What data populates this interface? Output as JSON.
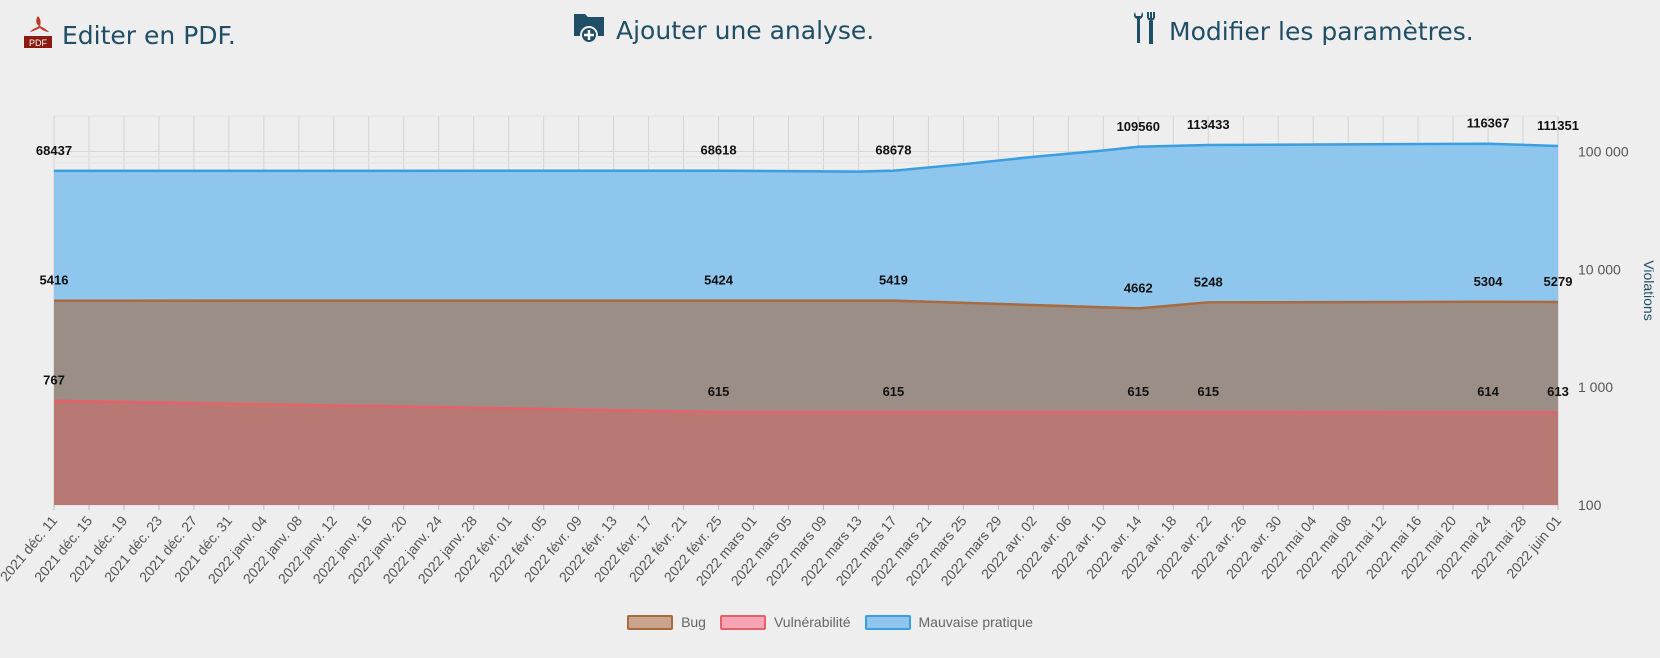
{
  "toolbar": {
    "pdf": {
      "label": "Editer en PDF.",
      "icon": "pdf-icon"
    },
    "add": {
      "label": "Ajouter une analyse.",
      "icon": "folder-add-icon"
    },
    "settings": {
      "label": "Modifier les paramètres.",
      "icon": "tools-icon"
    }
  },
  "chart_data": {
    "type": "area",
    "ylabel": "Violations",
    "yscale": "log",
    "ylim": [
      100,
      200000
    ],
    "y_ticks": [
      "100",
      "1 000",
      "10 000",
      "100 000"
    ],
    "x": [
      "2021 déc. 11",
      "2021 déc. 15",
      "2021 déc. 19",
      "2021 déc. 23",
      "2021 déc. 27",
      "2021 déc. 31",
      "2022 janv. 04",
      "2022 janv. 08",
      "2022 janv. 12",
      "2022 janv. 16",
      "2022 janv. 20",
      "2022 janv. 24",
      "2022 janv. 28",
      "2022 févr. 01",
      "2022 févr. 05",
      "2022 févr. 09",
      "2022 févr. 13",
      "2022 févr. 17",
      "2022 févr. 21",
      "2022 févr. 25",
      "2022 mars 01",
      "2022 mars 05",
      "2022 mars 09",
      "2022 mars 13",
      "2022 mars 17",
      "2022 mars 21",
      "2022 mars 25",
      "2022 mars 29",
      "2022 avr. 02",
      "2022 avr. 06",
      "2022 avr. 10",
      "2022 avr. 14",
      "2022 avr. 18",
      "2022 avr. 22",
      "2022 avr. 26",
      "2022 avr. 30",
      "2022 mai 04",
      "2022 mai 08",
      "2022 mai 12",
      "2022 mai 16",
      "2022 mai 20",
      "2022 mai 24",
      "2022 mai 28",
      "2022 juin 01"
    ],
    "series": [
      {
        "name": "Bug",
        "color": "#a86a3e",
        "fill": "#9a8e86",
        "points": [
          [
            "2021 déc. 11",
            5416
          ],
          [
            "2022 févr. 25",
            5424
          ],
          [
            "2022 mars 05",
            5430
          ],
          [
            "2022 mars 17",
            5419
          ],
          [
            "2022 avr. 14",
            4662
          ],
          [
            "2022 avr. 22",
            5248
          ],
          [
            "2022 mai 24",
            5304
          ],
          [
            "2022 juin 01",
            5279
          ]
        ],
        "labels": [
          [
            "2021 déc. 11",
            5416
          ],
          [
            "2022 févr. 25",
            5424
          ],
          [
            "2022 mars 17",
            5419
          ],
          [
            "2022 avr. 14",
            4662
          ],
          [
            "2022 avr. 22",
            5248
          ],
          [
            "2022 mai 24",
            5304
          ],
          [
            "2022 juin 01",
            5279
          ]
        ]
      },
      {
        "name": "Vulnérabilité",
        "color": "#e8606a",
        "fill": "#b87873",
        "points": [
          [
            "2021 déc. 11",
            767
          ],
          [
            "2022 janv. 04",
            715
          ],
          [
            "2022 févr. 01",
            660
          ],
          [
            "2022 févr. 25",
            615
          ],
          [
            "2022 mars 17",
            615
          ],
          [
            "2022 avr. 14",
            615
          ],
          [
            "2022 avr. 22",
            615
          ],
          [
            "2022 mai 24",
            614
          ],
          [
            "2022 juin 01",
            613
          ]
        ],
        "labels": [
          [
            "2021 déc. 11",
            767
          ],
          [
            "2022 févr. 25",
            615
          ],
          [
            "2022 mars 17",
            615
          ],
          [
            "2022 avr. 14",
            615
          ],
          [
            "2022 avr. 22",
            615
          ],
          [
            "2022 mai 24",
            614
          ],
          [
            "2022 juin 01",
            613
          ]
        ]
      },
      {
        "name": "Mauvaise pratique",
        "color": "#3a9ee0",
        "fill": "#8fc6ee",
        "points": [
          [
            "2021 déc. 11",
            68437
          ],
          [
            "2022 févr. 25",
            68618
          ],
          [
            "2022 mars 13",
            67500
          ],
          [
            "2022 mars 17",
            68678
          ],
          [
            "2022 mars 25",
            78000
          ],
          [
            "2022 avr. 02",
            90000
          ],
          [
            "2022 avr. 10",
            102000
          ],
          [
            "2022 avr. 14",
            109560
          ],
          [
            "2022 avr. 22",
            113433
          ],
          [
            "2022 mai 24",
            116367
          ],
          [
            "2022 juin 01",
            111351
          ]
        ],
        "labels": [
          [
            "2021 déc. 11",
            68437
          ],
          [
            "2022 févr. 25",
            68618
          ],
          [
            "2022 mars 17",
            68678
          ],
          [
            "2022 avr. 14",
            109560
          ],
          [
            "2022 avr. 22",
            113433
          ],
          [
            "2022 mai 24",
            116367
          ],
          [
            "2022 juin 01",
            111351
          ]
        ]
      }
    ],
    "legend": [
      "Bug",
      "Vulnérabilité",
      "Mauvaise pratique"
    ],
    "legend_position": "bottom",
    "grid": true
  }
}
